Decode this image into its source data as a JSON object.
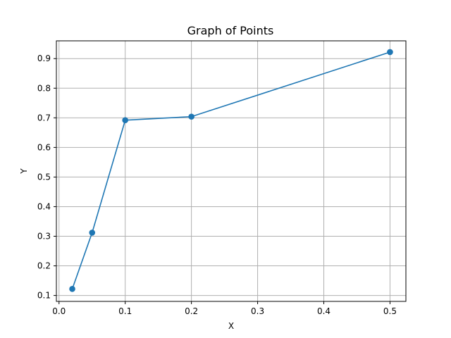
{
  "chart_data": {
    "type": "line",
    "title": "Graph of Points",
    "xlabel": "X",
    "ylabel": "Y",
    "xlim": [
      -0.004,
      0.524
    ],
    "ylim": [
      0.08,
      0.96
    ],
    "xticks": [
      0.0,
      0.1,
      0.2,
      0.3,
      0.4,
      0.5
    ],
    "xtick_labels": [
      "0.0",
      "0.1",
      "0.2",
      "0.3",
      "0.4",
      "0.5"
    ],
    "yticks": [
      0.1,
      0.2,
      0.3,
      0.4,
      0.5,
      0.6,
      0.7,
      0.8,
      0.9
    ],
    "ytick_labels": [
      "0.1",
      "0.2",
      "0.3",
      "0.4",
      "0.5",
      "0.6",
      "0.7",
      "0.8",
      "0.9"
    ],
    "grid": true,
    "series": [
      {
        "color": "#1f77b4",
        "marker": "circle",
        "x": [
          0.02,
          0.05,
          0.1,
          0.2,
          0.5
        ],
        "y": [
          0.122,
          0.312,
          0.692,
          0.704,
          0.922
        ]
      }
    ]
  }
}
